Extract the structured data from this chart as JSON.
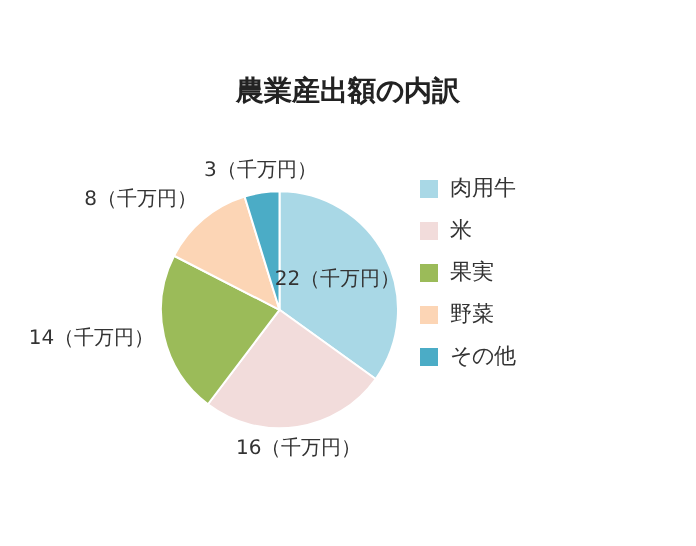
{
  "chart_data": {
    "type": "pie",
    "title": "農業産出額の内訳",
    "categories": [
      "肉用牛",
      "米",
      "果実",
      "野菜",
      "その他"
    ],
    "values": [
      22,
      16,
      14,
      8,
      3
    ],
    "colors": [
      "#a9d8e6",
      "#f2dcdb",
      "#9bbb59",
      "#fcd5b5",
      "#4bacc6"
    ],
    "value_labels": [
      "22（千万円）",
      "16（千万円）",
      "14（千万円）",
      "8（千万円）",
      "3（千万円）"
    ],
    "legend": "right"
  }
}
